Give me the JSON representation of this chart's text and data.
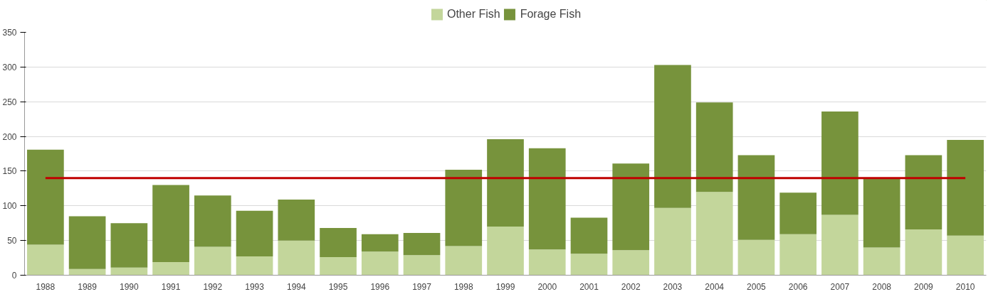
{
  "chart_data": {
    "type": "bar",
    "stacked": true,
    "categories": [
      "1988",
      "1989",
      "1990",
      "1991",
      "1992",
      "1993",
      "1994",
      "1995",
      "1996",
      "1997",
      "1998",
      "1999",
      "2000",
      "2001",
      "2002",
      "2003",
      "2004",
      "2005",
      "2006",
      "2007",
      "2008",
      "2009",
      "2010"
    ],
    "series": [
      {
        "name": "Other Fish",
        "color": "#c3d69b",
        "values": [
          44,
          9,
          11,
          19,
          41,
          27,
          50,
          26,
          34,
          29,
          42,
          70,
          37,
          31,
          36,
          97,
          120,
          51,
          59,
          87,
          40,
          66,
          57
        ]
      },
      {
        "name": "Forage Fish",
        "color": "#77933c",
        "values": [
          137,
          76,
          64,
          111,
          74,
          66,
          59,
          42,
          25,
          32,
          110,
          126,
          146,
          52,
          125,
          206,
          129,
          122,
          60,
          149,
          100,
          107,
          138
        ]
      },
      {
        "type": "line",
        "color": "#c00000",
        "values": [
          140,
          140,
          140,
          140,
          140,
          140,
          140,
          140,
          140,
          140,
          140,
          140,
          140,
          140,
          140,
          140,
          140,
          140,
          140,
          140,
          140,
          140,
          140
        ]
      }
    ],
    "ylim": [
      0,
      350
    ],
    "yticks": [
      0,
      50,
      100,
      150,
      200,
      250,
      300,
      350
    ],
    "grid": "y",
    "legend": "top"
  }
}
